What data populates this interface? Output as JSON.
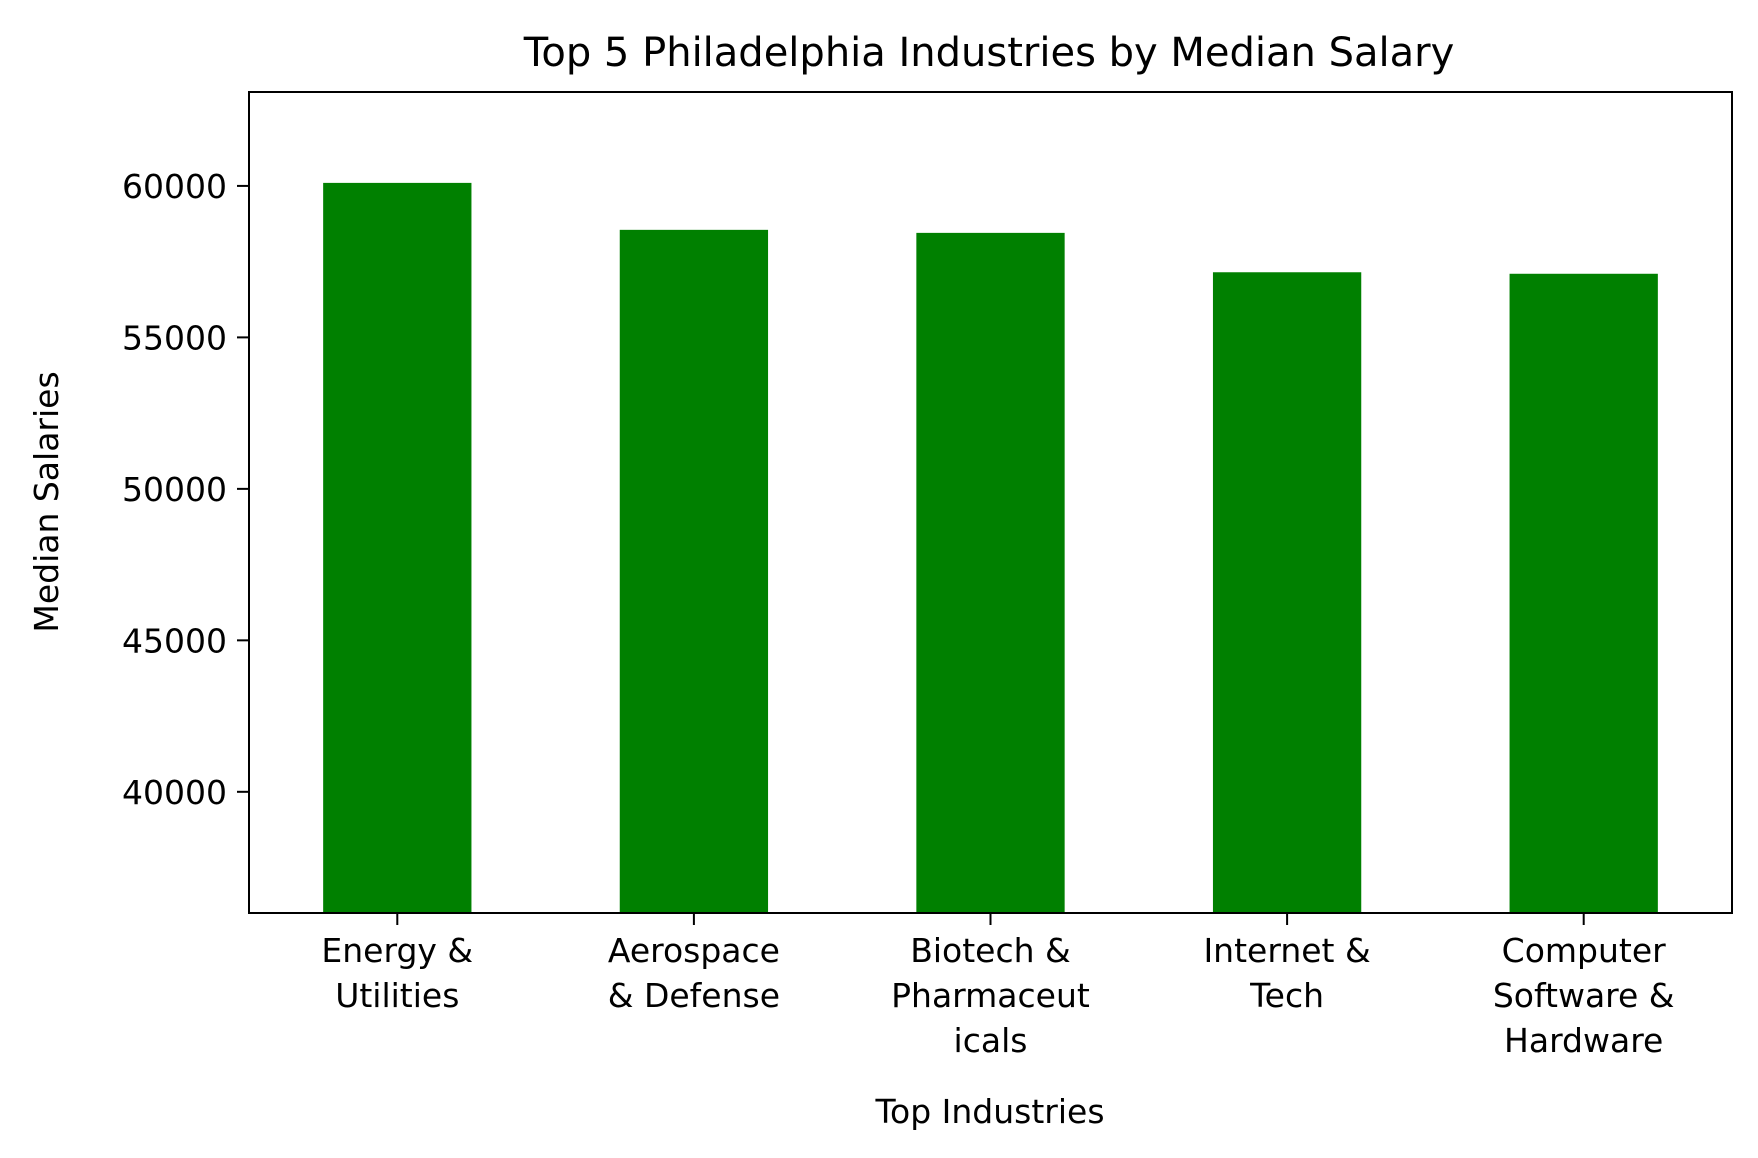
{
  "chart_data": {
    "type": "bar",
    "title": "Top 5 Philadelphia Industries by Median Salary",
    "xlabel": "Top Industries",
    "ylabel": "Median Salaries",
    "categories": [
      "Energy & Utilities",
      "Aerospace & Defense",
      "Biotech & Pharmaceuticals",
      "Internet & Tech",
      "Computer Software & Hardware"
    ],
    "category_label_lines": [
      [
        "Energy &",
        "Utilities"
      ],
      [
        "Aerospace",
        "& Defense"
      ],
      [
        "Biotech &",
        "Pharmaceut",
        "icals"
      ],
      [
        "Internet &",
        "Tech"
      ],
      [
        "Computer",
        "Software &",
        "Hardware"
      ]
    ],
    "values": [
      60100,
      58550,
      58450,
      57150,
      57100
    ],
    "ylim": [
      36000,
      63100
    ],
    "yticks": [
      40000,
      45000,
      50000,
      55000,
      60000
    ],
    "bar_color": "#008000",
    "grid": false,
    "legend": "none"
  }
}
